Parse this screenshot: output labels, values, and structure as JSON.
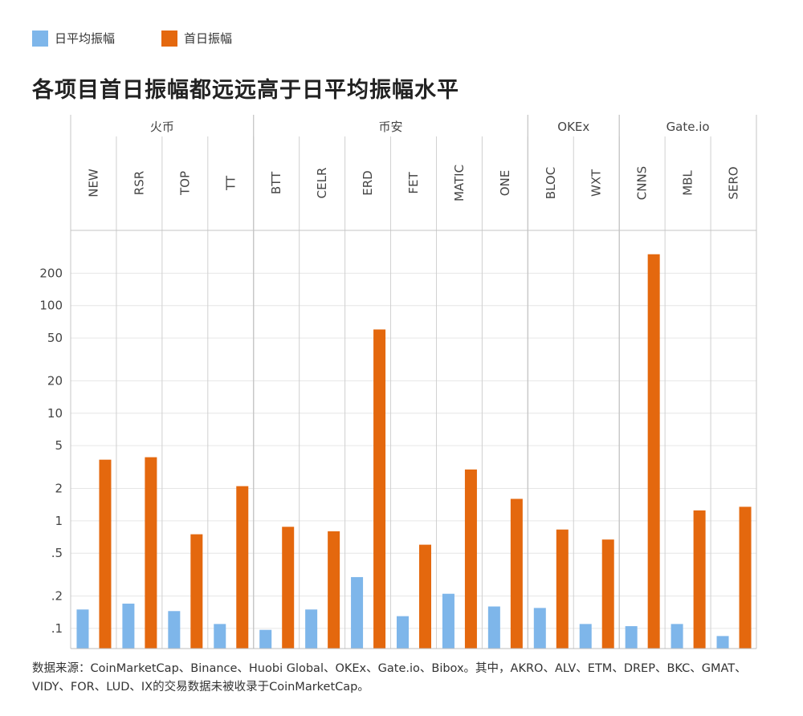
{
  "legend": [
    {
      "name": "日平均振幅",
      "color": "#7eb6ea"
    },
    {
      "name": "首日振幅",
      "color": "#e4680e"
    }
  ],
  "title": "各项目首日振幅都远远高于日平均振幅水平",
  "source": "数据来源：CoinMarketCap、Binance、Huobi Global、OKEx、Gate.io、Bibox。其中，AKRO、ALV、ETM、DREP、BKC、GMAT、VIDY、FOR、LUD、IX的交易数据未被收录于CoinMarketCap。",
  "chart_data": {
    "type": "bar",
    "scale": "log",
    "groups": [
      {
        "name": "火币",
        "categories": [
          "NEW",
          "RSR",
          "TOP",
          "TT"
        ]
      },
      {
        "name": "币安",
        "categories": [
          "BTT",
          "CELR",
          "ERD",
          "FET",
          "MATIC",
          "ONE"
        ]
      },
      {
        "name": "OKEx",
        "categories": [
          "BLOC",
          "WXT"
        ]
      },
      {
        "name": "Gate.io",
        "categories": [
          "CNNS",
          "MBL",
          "SERO"
        ]
      }
    ],
    "categories": [
      "NEW",
      "RSR",
      "TOP",
      "TT",
      "BTT",
      "CELR",
      "ERD",
      "FET",
      "MATIC",
      "ONE",
      "BLOC",
      "WXT",
      "CNNS",
      "MBL",
      "SERO"
    ],
    "series": [
      {
        "name": "日平均振幅",
        "color": "#7eb6ea",
        "values": [
          0.15,
          0.17,
          0.145,
          0.11,
          0.097,
          0.15,
          0.3,
          0.13,
          0.21,
          0.16,
          0.155,
          0.11,
          0.105,
          0.11,
          0.085
        ]
      },
      {
        "name": "首日振幅",
        "color": "#e4680e",
        "values": [
          3.7,
          3.9,
          0.75,
          2.1,
          0.88,
          0.8,
          60,
          0.6,
          3.0,
          1.6,
          0.83,
          0.67,
          300,
          1.25,
          1.35
        ]
      }
    ],
    "yticks": [
      {
        "v": 0.1,
        "label": ".1"
      },
      {
        "v": 0.2,
        "label": ".2"
      },
      {
        "v": 0.5,
        "label": ".5"
      },
      {
        "v": 1,
        "label": "1"
      },
      {
        "v": 2,
        "label": "2"
      },
      {
        "v": 5,
        "label": "5"
      },
      {
        "v": 10,
        "label": "10"
      },
      {
        "v": 20,
        "label": "20"
      },
      {
        "v": 50,
        "label": "50"
      },
      {
        "v": 100,
        "label": "100"
      },
      {
        "v": 200,
        "label": "200"
      }
    ],
    "gridlines": [
      0.1,
      0.2,
      0.5,
      1,
      2,
      5,
      10,
      20,
      50,
      100,
      200,
      500
    ],
    "ylim": [
      0.065,
      500
    ]
  }
}
